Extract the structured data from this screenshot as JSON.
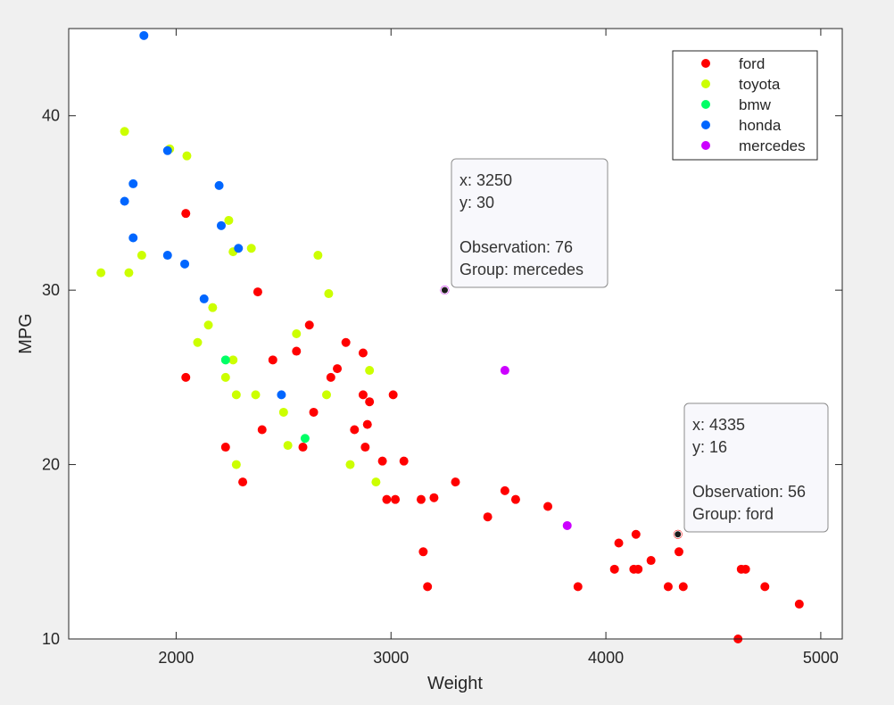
{
  "chart_data": {
    "type": "scatter",
    "title": "",
    "xlabel": "Weight",
    "ylabel": "MPG",
    "xlim": [
      1500,
      5100
    ],
    "ylim": [
      10,
      45
    ],
    "xticks": [
      2000,
      3000,
      4000,
      5000
    ],
    "yticks": [
      10,
      20,
      30,
      40
    ],
    "grid": false,
    "legend_position": "top-right",
    "series": [
      {
        "name": "ford",
        "color": "#ff0000",
        "points": [
          [
            2045,
            34.4
          ],
          [
            2045,
            25
          ],
          [
            2380,
            29.9
          ],
          [
            2450,
            26
          ],
          [
            2560,
            26.5
          ],
          [
            2620,
            28
          ],
          [
            2640,
            23
          ],
          [
            2720,
            25
          ],
          [
            2750,
            25.5
          ],
          [
            2790,
            27
          ],
          [
            2870,
            26.4
          ],
          [
            2870,
            24
          ],
          [
            2900,
            23.6
          ],
          [
            2890,
            22.3
          ],
          [
            2830,
            22
          ],
          [
            2880,
            21
          ],
          [
            2590,
            21
          ],
          [
            2230,
            21
          ],
          [
            2400,
            22
          ],
          [
            2310,
            19
          ],
          [
            3010,
            24
          ],
          [
            2960,
            20.2
          ],
          [
            3060,
            20.2
          ],
          [
            2980,
            18
          ],
          [
            3020,
            18
          ],
          [
            3140,
            18
          ],
          [
            3200,
            18.1
          ],
          [
            3300,
            19
          ],
          [
            3150,
            15
          ],
          [
            3170,
            13
          ],
          [
            3450,
            17
          ],
          [
            3530,
            18.5
          ],
          [
            3580,
            18
          ],
          [
            3730,
            17.6
          ],
          [
            3870,
            13
          ],
          [
            4040,
            14
          ],
          [
            4060,
            15.5
          ],
          [
            4130,
            14
          ],
          [
            4150,
            14
          ],
          [
            4140,
            16
          ],
          [
            4210,
            14.5
          ],
          [
            4290,
            13
          ],
          [
            4340,
            15
          ],
          [
            4335,
            16
          ],
          [
            4360,
            13
          ],
          [
            4615,
            10
          ],
          [
            4630,
            14
          ],
          [
            4650,
            14
          ],
          [
            4740,
            13
          ],
          [
            4900,
            12
          ]
        ]
      },
      {
        "name": "toyota",
        "color": "#ccff00",
        "points": [
          [
            1650,
            31
          ],
          [
            1760,
            39.1
          ],
          [
            1780,
            31
          ],
          [
            1840,
            32
          ],
          [
            1970,
            38.1
          ],
          [
            2050,
            37.7
          ],
          [
            2100,
            27
          ],
          [
            2150,
            28
          ],
          [
            2170,
            29
          ],
          [
            2230,
            25
          ],
          [
            2245,
            34
          ],
          [
            2265,
            32.2
          ],
          [
            2265,
            26
          ],
          [
            2280,
            24
          ],
          [
            2280,
            20
          ],
          [
            2350,
            32.4
          ],
          [
            2370,
            24
          ],
          [
            2500,
            23
          ],
          [
            2520,
            21.1
          ],
          [
            2560,
            27.5
          ],
          [
            2660,
            32
          ],
          [
            2700,
            24
          ],
          [
            2710,
            29.8
          ],
          [
            2810,
            20
          ],
          [
            2900,
            25.4
          ],
          [
            2930,
            19
          ]
        ]
      },
      {
        "name": "bmw",
        "color": "#00ff66",
        "points": [
          [
            2230,
            26
          ],
          [
            2600,
            21.5
          ]
        ]
      },
      {
        "name": "honda",
        "color": "#0066ff",
        "points": [
          [
            1850,
            44.6
          ],
          [
            1760,
            35.1
          ],
          [
            1800,
            36.1
          ],
          [
            1800,
            33
          ],
          [
            1960,
            38
          ],
          [
            1960,
            32
          ],
          [
            2040,
            31.5
          ],
          [
            2130,
            29.5
          ],
          [
            2200,
            36
          ],
          [
            2210,
            33.7
          ],
          [
            2290,
            32.4
          ],
          [
            2490,
            24
          ]
        ]
      },
      {
        "name": "mercedes",
        "color": "#cc00ff",
        "points": [
          [
            3530,
            25.4
          ],
          [
            3820,
            16.5
          ],
          [
            3250,
            30
          ]
        ]
      }
    ],
    "datatips": [
      {
        "x": 3250,
        "y": 30,
        "lines": [
          "x: 3250",
          "y: 30",
          "",
          "Observation: 76",
          "Group: mercedes"
        ]
      },
      {
        "x": 4335,
        "y": 16,
        "lines": [
          "x: 4335",
          "y: 16",
          "",
          "Observation: 56",
          "Group: ford"
        ]
      }
    ]
  }
}
